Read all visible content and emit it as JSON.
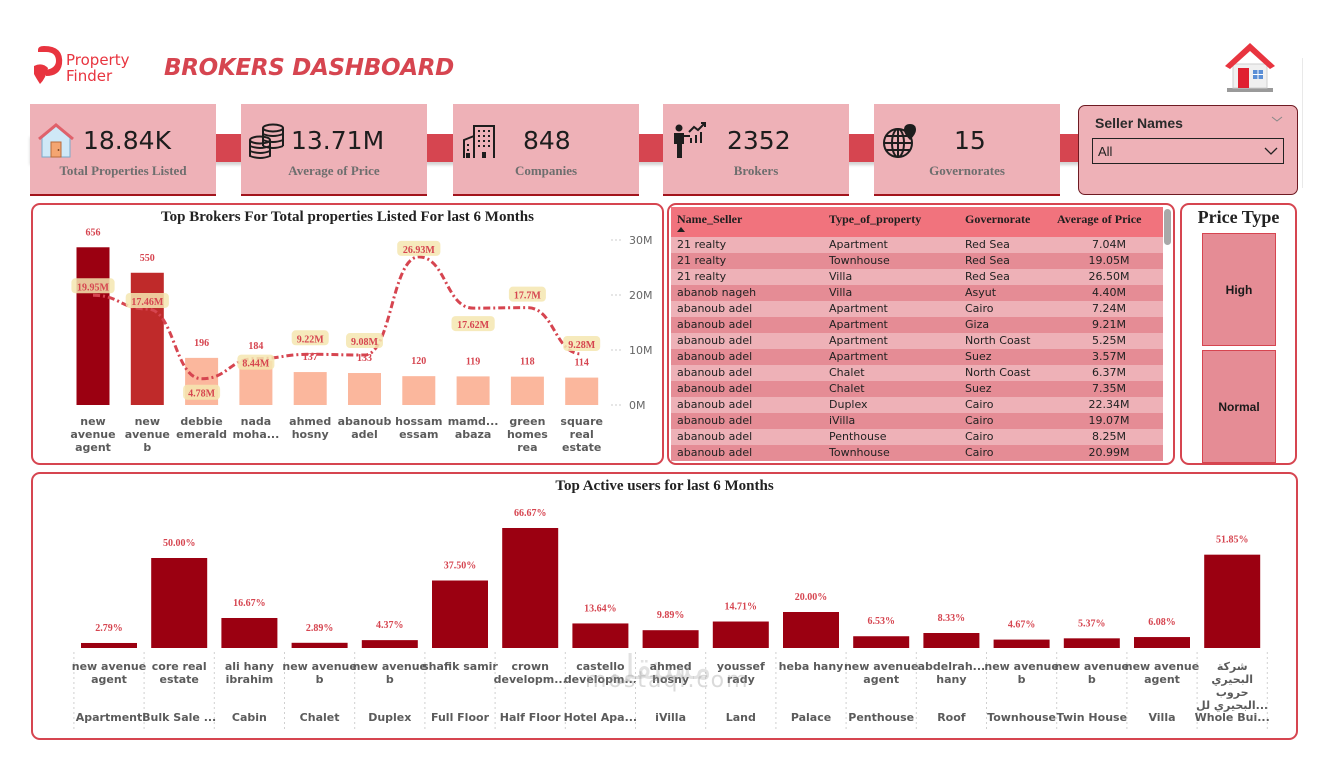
{
  "header": {
    "logo_line1": "Property",
    "logo_line2": "Finder",
    "title": "BROKERS DASHBOARD",
    "home_icon": "house-icon"
  },
  "kpis": [
    {
      "value": "18.84K",
      "label": "Total Properties Listed",
      "icon": "house-icon"
    },
    {
      "value": "13.71M",
      "label": "Average of Price",
      "icon": "coins-icon"
    },
    {
      "value": "848",
      "label": "Companies",
      "icon": "building-icon"
    },
    {
      "value": "2352",
      "label": "Brokers",
      "icon": "broker-presenter-icon"
    },
    {
      "value": "15",
      "label": "Governorates",
      "icon": "globe-pin-icon"
    }
  ],
  "slicer": {
    "title": "Seller Names",
    "selected": "All"
  },
  "colors": {
    "accent": "#d64550",
    "kpi_bg": "#eeb1b7",
    "bar_dark": "#9b0011",
    "bar_mid": "#bf2a2a",
    "bar_light": "#fbb79d",
    "label_bg": "#f5e6b0",
    "table_header": "#f1737d",
    "row_light": "#eeb1b7",
    "row_dark": "#e58c95"
  },
  "table": {
    "columns": [
      "Name_Seller",
      "Type_of_property",
      "Governorate",
      "Average of Price"
    ],
    "sort_column": "Name_Seller",
    "sort_direction": "ascending",
    "rows": [
      [
        "21 realty",
        "Apartment",
        "Red Sea",
        "7.04M"
      ],
      [
        "21 realty",
        "Townhouse",
        "Red Sea",
        "19.05M"
      ],
      [
        "21 realty",
        "Villa",
        "Red Sea",
        "26.50M"
      ],
      [
        "abanob nageh",
        "Villa",
        "Asyut",
        "4.40M"
      ],
      [
        "abanoub adel",
        "Apartment",
        "Cairo",
        "7.24M"
      ],
      [
        "abanoub adel",
        "Apartment",
        "Giza",
        "9.21M"
      ],
      [
        "abanoub adel",
        "Apartment",
        "North Coast",
        "5.25M"
      ],
      [
        "abanoub adel",
        "Apartment",
        "Suez",
        "3.57M"
      ],
      [
        "abanoub adel",
        "Chalet",
        "North Coast",
        "6.37M"
      ],
      [
        "abanoub adel",
        "Chalet",
        "Suez",
        "7.35M"
      ],
      [
        "abanoub adel",
        "Duplex",
        "Cairo",
        "22.34M"
      ],
      [
        "abanoub adel",
        "iVilla",
        "Cairo",
        "19.07M"
      ],
      [
        "abanoub adel",
        "Penthouse",
        "Cairo",
        "8.25M"
      ],
      [
        "abanoub adel",
        "Townhouse",
        "Cairo",
        "20.99M"
      ]
    ]
  },
  "price_type": {
    "title": "Price Type",
    "options": [
      "High",
      "Normal"
    ]
  },
  "chart_data": [
    {
      "type": "bar",
      "title": "Top Brokers For Total properties Listed For last 6 Months",
      "categories": [
        "new avenue agent",
        "new avenue b",
        "debbie emerald",
        "nada moha...",
        "ahmed hosny",
        "abanoub adel",
        "hossam essam",
        "mamd... abaza",
        "green homes rea",
        "square real estate"
      ],
      "category_lines": [
        [
          "new",
          "avenue",
          "agent"
        ],
        [
          "new",
          "avenue",
          "b"
        ],
        [
          "debbie",
          "emerald"
        ],
        [
          "nada",
          "moha..."
        ],
        [
          "ahmed",
          "hosny"
        ],
        [
          "abanoub",
          "adel"
        ],
        [
          "hossam",
          "essam"
        ],
        [
          "mamd...",
          "abaza"
        ],
        [
          "green",
          "homes",
          "rea"
        ],
        [
          "square",
          "real",
          "estate"
        ]
      ],
      "series": [
        {
          "name": "Total Properties Listed",
          "kind": "bar",
          "values": [
            656,
            550,
            196,
            184,
            137,
            133,
            120,
            119,
            118,
            114
          ],
          "labels": [
            "656",
            "550",
            "196",
            "184",
            "137",
            "133",
            "120",
            "119",
            "118",
            "114"
          ]
        },
        {
          "name": "Average of Price",
          "kind": "line",
          "axis": "secondary",
          "values": [
            19.95,
            17.46,
            4.78,
            8.44,
            9.22,
            9.08,
            26.93,
            17.62,
            17.7,
            9.28
          ],
          "labels": [
            "19.95M",
            "17.46M",
            "4.78M",
            "8.44M",
            "9.22M",
            "9.08M",
            "26.93M",
            "17.62M",
            "17.7M",
            "9.28M"
          ]
        }
      ],
      "y2_ticks": [
        "0M",
        "10M",
        "20M",
        "30M"
      ],
      "y2lim": [
        0,
        30
      ],
      "ylim": [
        0,
        700
      ],
      "grid": false
    },
    {
      "type": "bar",
      "title": "Top Active users for last 6 Months",
      "categories": [
        "Apartment",
        "Bulk Sale ...",
        "Cabin",
        "Chalet",
        "Duplex",
        "Full Floor",
        "Half Floor",
        "Hotel Apa...",
        "iVilla",
        "Land",
        "Palace",
        "Penthouse",
        "Roof",
        "Townhouse",
        "Twin House",
        "Villa",
        "Whole Bui..."
      ],
      "users": [
        [
          "new avenue",
          "agent"
        ],
        [
          "core real",
          "estate"
        ],
        [
          "ali hany",
          "ibrahim"
        ],
        [
          "new avenue",
          "b"
        ],
        [
          "new avenue",
          "b"
        ],
        [
          "shafik samir"
        ],
        [
          "crown",
          "developm..."
        ],
        [
          "castello",
          "developm..."
        ],
        [
          "ahmed",
          "hosny"
        ],
        [
          "youssef",
          "rady"
        ],
        [
          "heba hany"
        ],
        [
          "new avenue",
          "agent"
        ],
        [
          "abdelrah...",
          "hany"
        ],
        [
          "new avenue",
          "b"
        ],
        [
          "new avenue",
          "b"
        ],
        [
          "new avenue",
          "agent"
        ],
        [
          "شركة",
          "البحيري",
          "حروب",
          "البحيري لل..."
        ]
      ],
      "values": [
        2.79,
        50.0,
        16.67,
        2.89,
        4.37,
        37.5,
        66.67,
        13.64,
        9.89,
        14.71,
        20.0,
        6.53,
        8.33,
        4.67,
        5.37,
        6.08,
        51.85
      ],
      "labels": [
        "2.79%",
        "50.00%",
        "16.67%",
        "2.89%",
        "4.37%",
        "37.50%",
        "66.67%",
        "13.64%",
        "9.89%",
        "14.71%",
        "20.00%",
        "6.53%",
        "8.33%",
        "4.67%",
        "5.37%",
        "6.08%",
        "51.85%"
      ],
      "ylim": [
        0,
        70
      ],
      "grid": false
    }
  ],
  "watermark": {
    "arabic": "مستقل",
    "latin": "mostaql.com"
  }
}
